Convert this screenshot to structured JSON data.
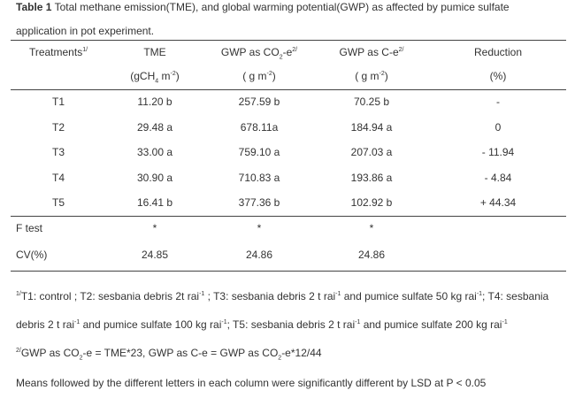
{
  "caption": {
    "label": "Table 1",
    "text": " Total methane emission(TME), and global warming  potential(GWP) as affected by pumice sulfate application in pot experiment."
  },
  "table": {
    "header1": [
      [
        {
          "t": "Treatments"
        },
        {
          "sup": "1/"
        }
      ],
      [
        {
          "t": "TME"
        }
      ],
      [
        {
          "t": "GWP as CO"
        },
        {
          "sub": "2"
        },
        {
          "t": "-e"
        },
        {
          "sup": "2/"
        }
      ],
      [
        {
          "t": "GWP as C-e"
        },
        {
          "sup": "2/"
        }
      ],
      [
        {
          "t": "Reduction"
        }
      ]
    ],
    "header2": [
      [],
      [
        {
          "t": "(gCH"
        },
        {
          "sub": "4"
        },
        {
          "t": " m"
        },
        {
          "sup": "-2"
        },
        {
          "t": ")"
        }
      ],
      [
        {
          "t": "( g m"
        },
        {
          "sup": "-2"
        },
        {
          "t": ")"
        }
      ],
      [
        {
          "t": "( g m"
        },
        {
          "sup": "-2"
        },
        {
          "t": ")"
        }
      ],
      [
        {
          "t": "(%)"
        }
      ]
    ],
    "rows": [
      [
        "T1",
        "11.20 b",
        "257.59 b",
        "70.25 b",
        "-"
      ],
      [
        "T2",
        "29.48 a",
        "678.11a",
        "184.94 a",
        "0"
      ],
      [
        "T3",
        "33.00 a",
        "759.10 a",
        "207.03 a",
        "- 11.94"
      ],
      [
        "T4",
        "30.90 a",
        "710.83 a",
        "193.86 a",
        "- 4.84"
      ],
      [
        "T5",
        "16.41 b",
        "377.36 b",
        "102.92 b",
        "+ 44.34"
      ]
    ],
    "stats": [
      [
        "F test",
        "*",
        "*",
        "*"
      ],
      [
        "CV(%)",
        "24.85",
        "24.86",
        "24.86"
      ]
    ]
  },
  "footnotes": [
    [
      {
        "sup": "1/"
      },
      {
        "t": "T1:  control ; T2:  sesbania debris 2t rai"
      },
      {
        "sup": "-1"
      },
      {
        "t": " ; T3:  sesbania debris 2 t rai"
      },
      {
        "sup": "-1"
      },
      {
        "t": "  and pumice sulfate 50 kg rai"
      },
      {
        "sup": "-1"
      },
      {
        "t": "; T4:  sesbania debris 2 t rai"
      },
      {
        "sup": "-1"
      },
      {
        "t": " and pumice sulfate 100 kg rai"
      },
      {
        "sup": "-1"
      },
      {
        "t": "; T5:  sesbania debris 2 t rai"
      },
      {
        "sup": "-1"
      },
      {
        "t": "  and pumice sulfate 200 kg rai"
      },
      {
        "sup": "-1"
      }
    ],
    [
      {
        "sup": "2/"
      },
      {
        "t": "GWP as CO"
      },
      {
        "sub": "2"
      },
      {
        "t": "-e = TME*23, GWP as C-e = GWP as CO"
      },
      {
        "sub": "2"
      },
      {
        "t": "-e*12/44"
      }
    ],
    [
      {
        "t": "Means followed by the different letters in each column were significantly different by LSD at P < 0.05"
      }
    ]
  ]
}
